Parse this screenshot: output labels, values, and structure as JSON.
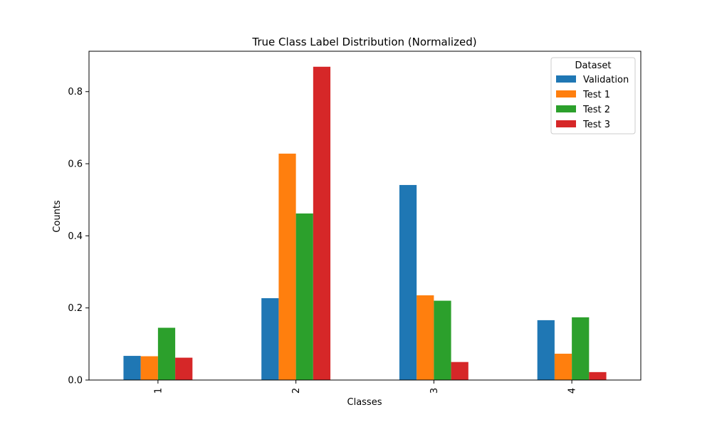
{
  "chart_data": {
    "type": "bar",
    "title": "True Class Label Distribution (Normalized)",
    "xlabel": "Classes",
    "ylabel": "Counts",
    "categories": [
      "1",
      "2",
      "3",
      "4"
    ],
    "ylim": [
      0,
      0.912
    ],
    "yticks": [
      0.0,
      0.2,
      0.4,
      0.6,
      0.8
    ],
    "ytick_labels": [
      "0.0",
      "0.2",
      "0.4",
      "0.6",
      "0.8"
    ],
    "grid": false,
    "legend": {
      "title": "Dataset",
      "placement": "top-right"
    },
    "series": [
      {
        "name": "Validation",
        "color": "#1f77b4",
        "values": [
          0.067,
          0.227,
          0.541,
          0.166
        ]
      },
      {
        "name": "Test 1",
        "color": "#ff7f0e",
        "values": [
          0.066,
          0.628,
          0.235,
          0.073
        ]
      },
      {
        "name": "Test 2",
        "color": "#2ca02c",
        "values": [
          0.145,
          0.462,
          0.22,
          0.174
        ]
      },
      {
        "name": "Test 3",
        "color": "#d62728",
        "values": [
          0.062,
          0.869,
          0.05,
          0.022
        ]
      }
    ]
  }
}
